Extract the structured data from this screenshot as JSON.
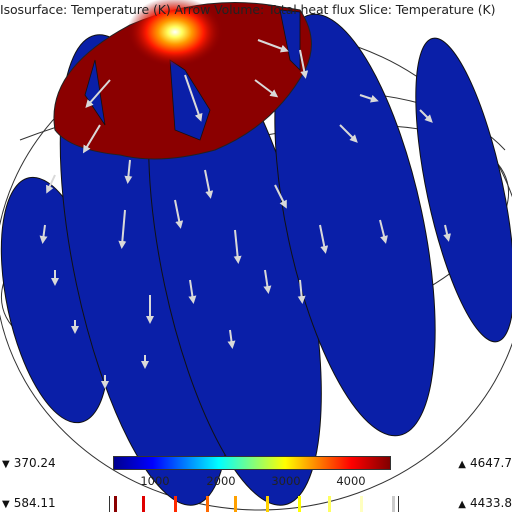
{
  "title": "Isosurface: Temperature (K)  Arrow Volume: Total heat flux  Slice: Temperature (K)",
  "isosurface_range": {
    "min": "370.24",
    "max": "4647.7"
  },
  "slice_range": {
    "min": "584.11",
    "max": "4433.8"
  },
  "colorbar_ticks": [
    "1000",
    "2000",
    "3000",
    "4000"
  ],
  "colors": {
    "cold": "#0a1fa8",
    "hot": "#8b0000",
    "arrow": "#d9d9d9"
  }
}
